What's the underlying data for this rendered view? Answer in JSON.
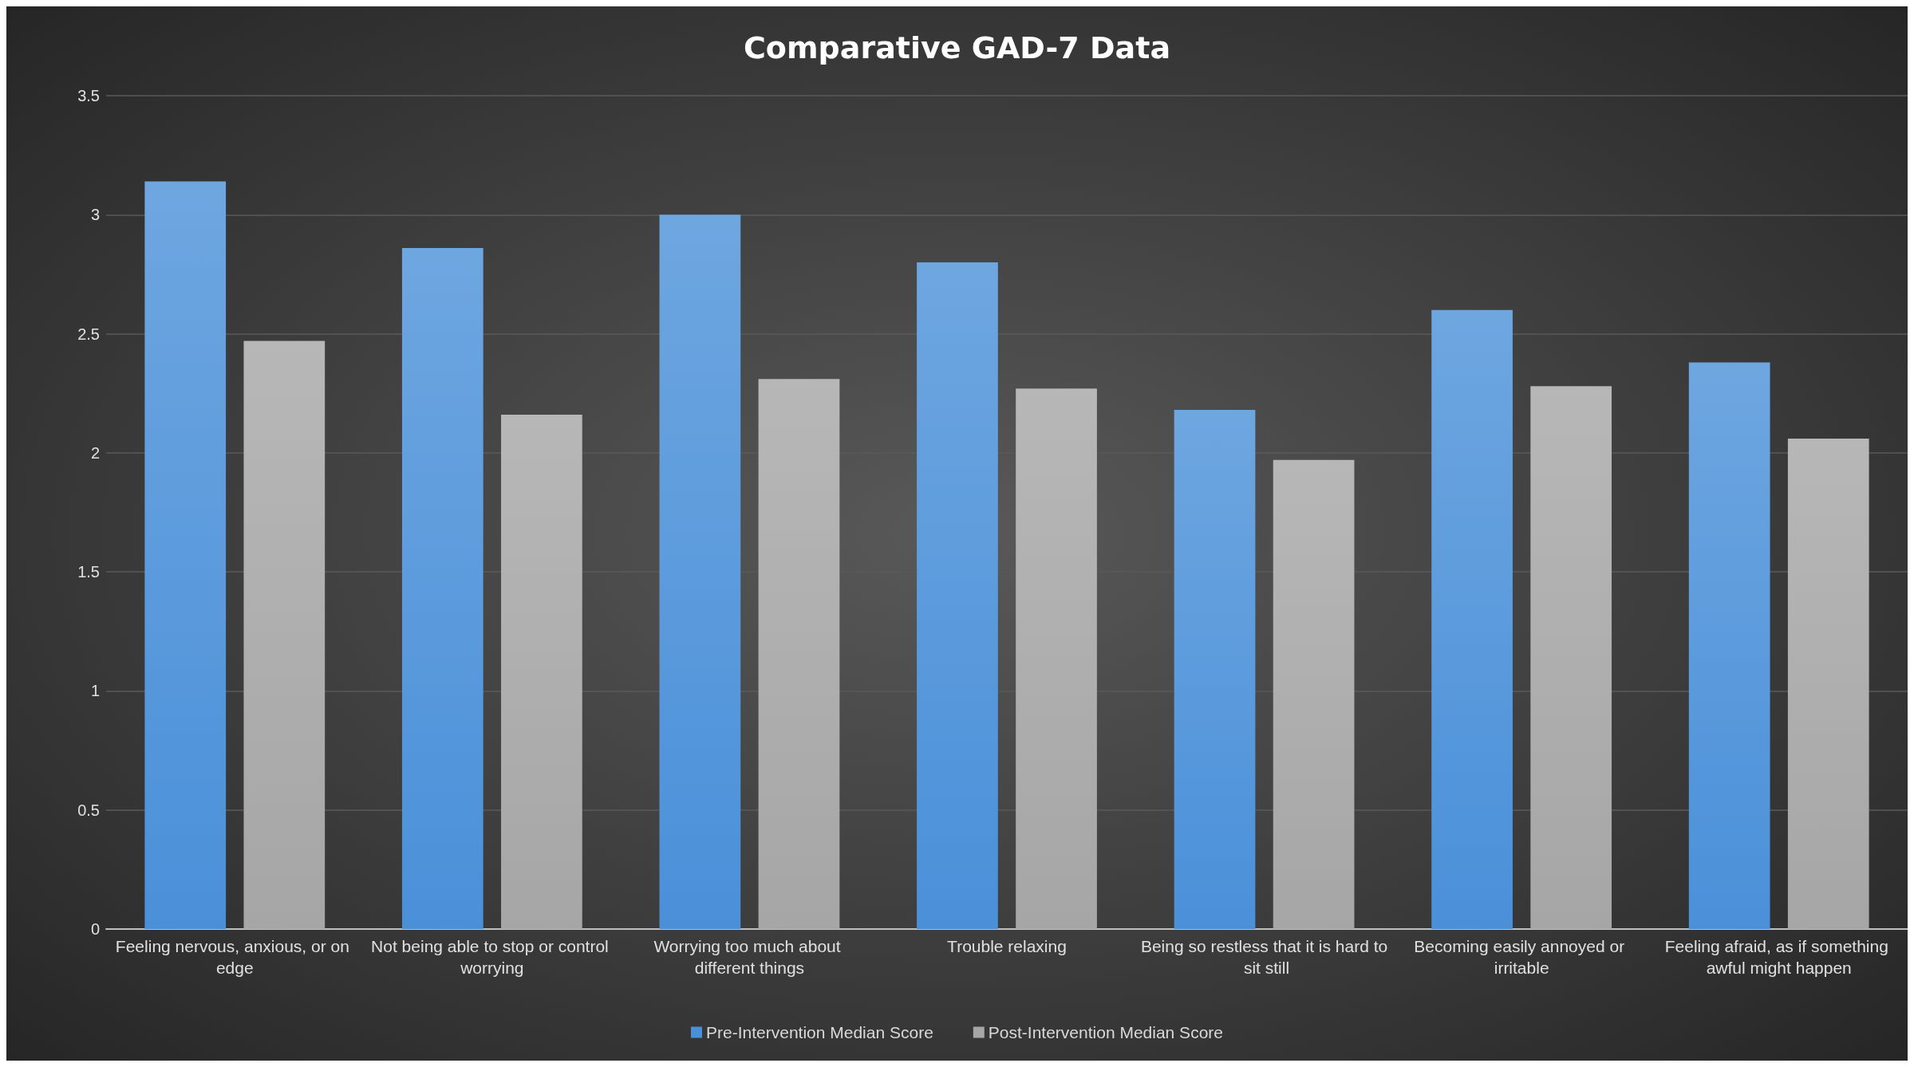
{
  "chart_data": {
    "type": "bar",
    "title": "Comparative GAD-7 Data",
    "categories": [
      "Feeling nervous, anxious, or on edge",
      "Not being able to stop or control worrying",
      "Worrying too much about different things",
      "Trouble relaxing",
      "Being so restless that it is hard to sit still",
      "Becoming easily annoyed or irritable",
      "Feeling afraid, as if something awful might happen"
    ],
    "series": [
      {
        "name": "Pre-Intervention Median Score",
        "color": "#4a90d9",
        "values": [
          3.14,
          2.86,
          3.0,
          2.8,
          2.18,
          2.6,
          2.38
        ]
      },
      {
        "name": "Post-Intervention Median Score",
        "color": "#a6a6a6",
        "values": [
          2.47,
          2.16,
          2.31,
          2.27,
          1.97,
          2.28,
          2.06
        ]
      }
    ],
    "ylim": [
      0,
      3.5
    ],
    "yticks": [
      0,
      0.5,
      1,
      1.5,
      2,
      2.5,
      3,
      3.5
    ],
    "grid": "y",
    "legend": "bottom"
  }
}
